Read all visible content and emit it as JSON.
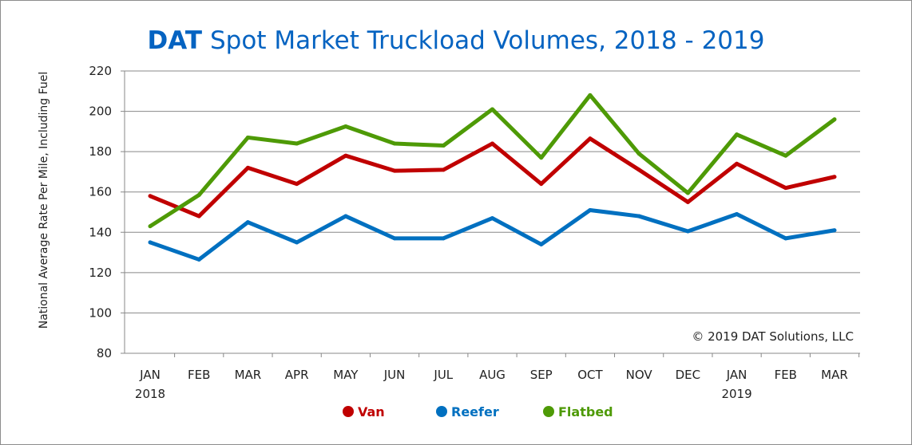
{
  "chart_data": {
    "type": "line",
    "title_brand": "DAT",
    "title": "Spot Market Truckload Volumes, 2018 - 2019",
    "ylabel": "National Average Rate Per Mile, Including Fuel",
    "xlabel": "",
    "ylim": [
      80,
      220
    ],
    "yticks": [
      80,
      100,
      120,
      140,
      160,
      180,
      200,
      220
    ],
    "grid": true,
    "legend_position": "bottom",
    "categories": [
      "JAN",
      "FEB",
      "MAR",
      "APR",
      "MAY",
      "JUN",
      "JUL",
      "AUG",
      "SEP",
      "OCT",
      "NOV",
      "DEC",
      "JAN",
      "FEB",
      "MAR"
    ],
    "year_labels": [
      "2018",
      "",
      "",
      "",
      "",
      "",
      "",
      "",
      "",
      "",
      "",
      "",
      "2019",
      "",
      ""
    ],
    "annotation": "© 2019 DAT Solutions, LLC",
    "series": [
      {
        "name": "Van",
        "color": "#c00000",
        "values": [
          158,
          148,
          172,
          164,
          178,
          170.5,
          171,
          184,
          164,
          186.5,
          171,
          155,
          174,
          162,
          167.5
        ]
      },
      {
        "name": "Reefer",
        "color": "#0070c0",
        "values": [
          135,
          126.5,
          145,
          135,
          148,
          137,
          137,
          147,
          134,
          151,
          148,
          140.5,
          149,
          137,
          141
        ]
      },
      {
        "name": "Flatbed",
        "color": "#4e9a06",
        "values": [
          143,
          158.5,
          187,
          184,
          192.5,
          184,
          183,
          201,
          177,
          208,
          179,
          159.5,
          188.5,
          178,
          196
        ]
      }
    ],
    "title_color": "#0563c1"
  }
}
